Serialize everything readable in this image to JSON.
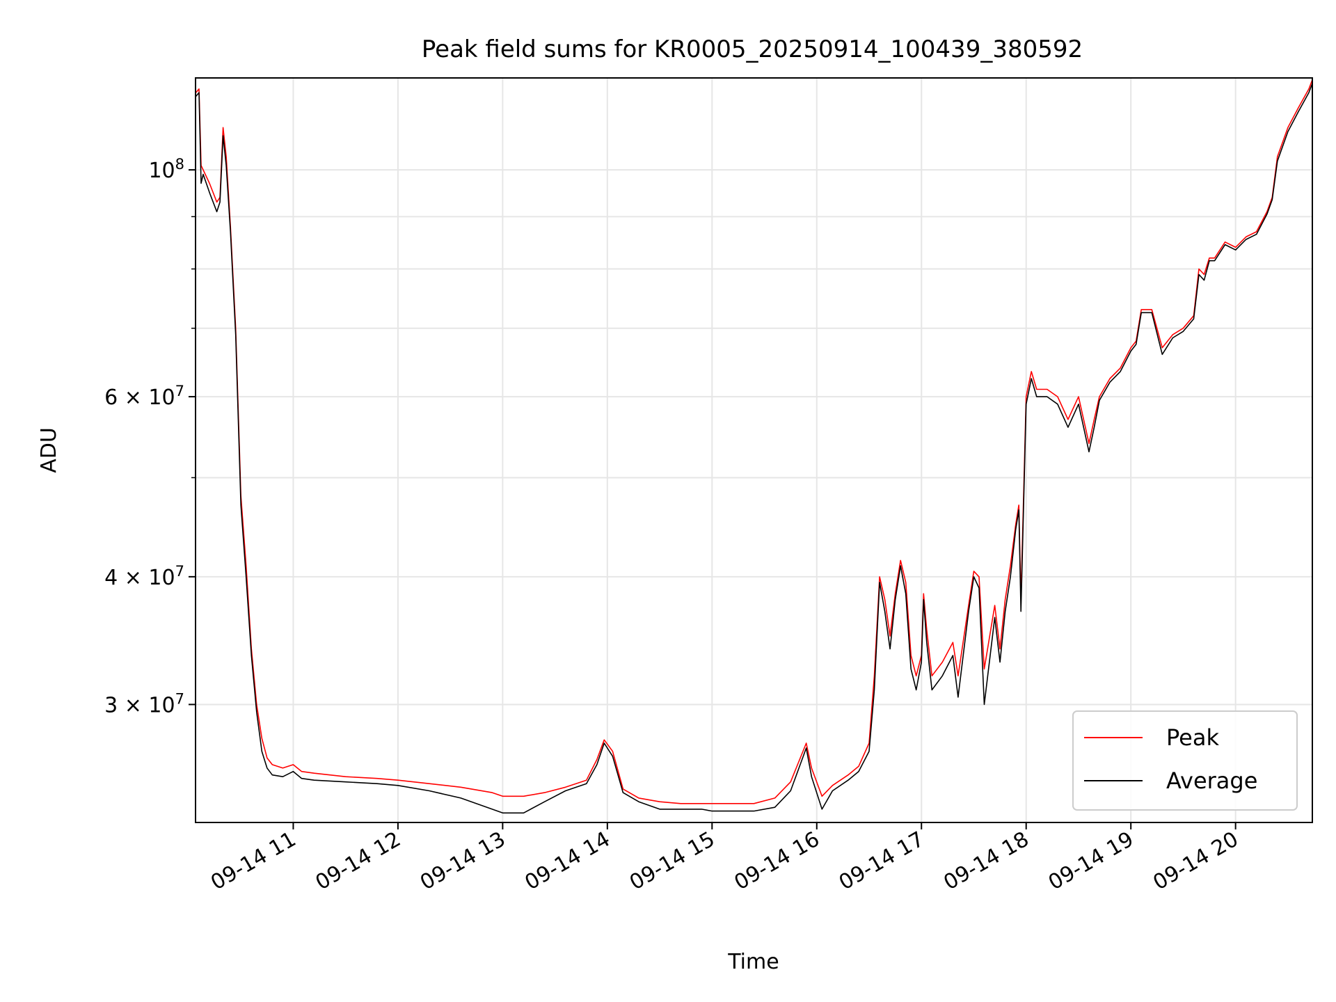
{
  "chart_data": {
    "type": "line",
    "title": "Peak field sums for KR0005_20250914_100439_380592",
    "xlabel": "Time",
    "ylabel": "ADU",
    "x_scale": "time",
    "y_scale": "log",
    "xlim": [
      "09-14 10:04",
      "09-14 20:44"
    ],
    "ylim": [
      23000000,
      123000000
    ],
    "grid": true,
    "legend_position": "lower-right",
    "x_ticks": [
      {
        "label": "09-14 11",
        "hour": 11
      },
      {
        "label": "09-14 12",
        "hour": 12
      },
      {
        "label": "09-14 13",
        "hour": 13
      },
      {
        "label": "09-14 14",
        "hour": 14
      },
      {
        "label": "09-14 15",
        "hour": 15
      },
      {
        "label": "09-14 16",
        "hour": 16
      },
      {
        "label": "09-14 17",
        "hour": 17
      },
      {
        "label": "09-14 18",
        "hour": 18
      },
      {
        "label": "09-14 19",
        "hour": 19
      },
      {
        "label": "09-14 20",
        "hour": 20
      }
    ],
    "y_ticks": [
      {
        "label": "3 × 10",
        "exp": "7",
        "value": 30000000
      },
      {
        "label": "4 × 10",
        "exp": "7",
        "value": 40000000
      },
      {
        "label": "6 × 10",
        "exp": "7",
        "value": 60000000
      },
      {
        "label": "10",
        "exp": "8",
        "value": 100000000
      }
    ],
    "y_minor_ticks": [
      50000000,
      70000000,
      80000000,
      90000000
    ],
    "series": [
      {
        "name": "Peak",
        "color": "#ff0000",
        "x_hours": [
          10.07,
          10.1,
          10.12,
          10.14,
          10.2,
          10.27,
          10.3,
          10.33,
          10.36,
          10.4,
          10.45,
          10.5,
          10.55,
          10.6,
          10.65,
          10.7,
          10.75,
          10.8,
          10.9,
          11.0,
          11.08,
          11.2,
          11.5,
          11.8,
          12.0,
          12.3,
          12.6,
          12.9,
          13.0,
          13.2,
          13.4,
          13.6,
          13.8,
          13.9,
          13.97,
          14.05,
          14.15,
          14.3,
          14.5,
          14.7,
          14.9,
          15.0,
          15.2,
          15.4,
          15.6,
          15.75,
          15.9,
          15.95,
          16.05,
          16.15,
          16.3,
          16.4,
          16.5,
          16.55,
          16.6,
          16.65,
          16.7,
          16.75,
          16.8,
          16.85,
          16.9,
          16.95,
          17.0,
          17.02,
          17.05,
          17.1,
          17.2,
          17.3,
          17.35,
          17.45,
          17.5,
          17.55,
          17.6,
          17.7,
          17.75,
          17.8,
          17.85,
          17.9,
          17.93,
          17.95,
          18.0,
          18.05,
          18.1,
          18.2,
          18.3,
          18.4,
          18.5,
          18.6,
          18.65,
          18.7,
          18.8,
          18.9,
          19.0,
          19.05,
          19.1,
          19.2,
          19.3,
          19.4,
          19.5,
          19.6,
          19.65,
          19.7,
          19.75,
          19.8,
          19.9,
          20.0,
          20.1,
          20.2,
          20.3,
          20.35,
          20.4,
          20.5,
          20.6,
          20.7,
          20.74
        ],
        "values": [
          119000000,
          120000000,
          101000000,
          100000000,
          97000000,
          93000000,
          94000000,
          110000000,
          103000000,
          88000000,
          70000000,
          48000000,
          41000000,
          34000000,
          30000000,
          27800000,
          26600000,
          26200000,
          26000000,
          26200000,
          25800000,
          25700000,
          25500000,
          25400000,
          25300000,
          25100000,
          24900000,
          24600000,
          24400000,
          24400000,
          24600000,
          24900000,
          25300000,
          26500000,
          27700000,
          27000000,
          24800000,
          24300000,
          24100000,
          24000000,
          24000000,
          24000000,
          24000000,
          24000000,
          24300000,
          25200000,
          27500000,
          26000000,
          24400000,
          25000000,
          25600000,
          26100000,
          27500000,
          32000000,
          40000000,
          38000000,
          35000000,
          38500000,
          41500000,
          39500000,
          33500000,
          32000000,
          33500000,
          38500000,
          35500000,
          32000000,
          33000000,
          34500000,
          32000000,
          37500000,
          40500000,
          40000000,
          32500000,
          37500000,
          34000000,
          38000000,
          41000000,
          45000000,
          47000000,
          38000000,
          60000000,
          63500000,
          61000000,
          61000000,
          60000000,
          57000000,
          60000000,
          54000000,
          57000000,
          60000000,
          62500000,
          64000000,
          67000000,
          68000000,
          73000000,
          73000000,
          67000000,
          69000000,
          70000000,
          72000000,
          80000000,
          79000000,
          82000000,
          82000000,
          85000000,
          84000000,
          86000000,
          87000000,
          91000000,
          94000000,
          103000000,
          110000000,
          115000000,
          120000000,
          123000000
        ]
      },
      {
        "name": "Average",
        "color": "#000000",
        "x_hours": [
          10.07,
          10.1,
          10.12,
          10.14,
          10.2,
          10.27,
          10.3,
          10.33,
          10.36,
          10.4,
          10.45,
          10.5,
          10.55,
          10.6,
          10.65,
          10.7,
          10.75,
          10.8,
          10.9,
          11.0,
          11.08,
          11.2,
          11.5,
          11.8,
          12.0,
          12.3,
          12.6,
          12.9,
          13.0,
          13.2,
          13.4,
          13.6,
          13.8,
          13.9,
          13.97,
          14.05,
          14.15,
          14.3,
          14.5,
          14.7,
          14.9,
          15.0,
          15.2,
          15.4,
          15.6,
          15.75,
          15.9,
          15.95,
          16.05,
          16.15,
          16.3,
          16.4,
          16.5,
          16.55,
          16.6,
          16.65,
          16.7,
          16.75,
          16.8,
          16.85,
          16.9,
          16.95,
          17.0,
          17.02,
          17.05,
          17.1,
          17.2,
          17.3,
          17.35,
          17.45,
          17.5,
          17.55,
          17.6,
          17.7,
          17.75,
          17.8,
          17.85,
          17.9,
          17.93,
          17.95,
          18.0,
          18.05,
          18.1,
          18.2,
          18.3,
          18.4,
          18.5,
          18.6,
          18.65,
          18.7,
          18.8,
          18.9,
          19.0,
          19.05,
          19.1,
          19.2,
          19.3,
          19.4,
          19.5,
          19.6,
          19.65,
          19.7,
          19.75,
          19.8,
          19.9,
          20.0,
          20.1,
          20.2,
          20.3,
          20.35,
          20.4,
          20.5,
          20.6,
          20.7,
          20.74
        ],
        "values": [
          118000000,
          119000000,
          97000000,
          99000000,
          95000000,
          91000000,
          93000000,
          108000000,
          101000000,
          87000000,
          69000000,
          47000000,
          40000000,
          33500000,
          29500000,
          27000000,
          26000000,
          25600000,
          25500000,
          25800000,
          25400000,
          25300000,
          25200000,
          25100000,
          25000000,
          24700000,
          24300000,
          23700000,
          23500000,
          23500000,
          24100000,
          24700000,
          25100000,
          26200000,
          27500000,
          26700000,
          24600000,
          24100000,
          23700000,
          23700000,
          23700000,
          23600000,
          23600000,
          23600000,
          23800000,
          24700000,
          27200000,
          25500000,
          23700000,
          24700000,
          25300000,
          25800000,
          27000000,
          31000000,
          39500000,
          37000000,
          34000000,
          38000000,
          41000000,
          38500000,
          32500000,
          31000000,
          33000000,
          38000000,
          34500000,
          31000000,
          32000000,
          33500000,
          30500000,
          37000000,
          40000000,
          39000000,
          30000000,
          36500000,
          33000000,
          37000000,
          40000000,
          44500000,
          46500000,
          37000000,
          59000000,
          62500000,
          60000000,
          60000000,
          59000000,
          56000000,
          59000000,
          53000000,
          56000000,
          59500000,
          62000000,
          63500000,
          66500000,
          67500000,
          72500000,
          72500000,
          66000000,
          68500000,
          69500000,
          71500000,
          79000000,
          78000000,
          81500000,
          81500000,
          84500000,
          83500000,
          85500000,
          86500000,
          90500000,
          93500000,
          102000000,
          109000000,
          114000000,
          119000000,
          122000000
        ]
      }
    ]
  }
}
